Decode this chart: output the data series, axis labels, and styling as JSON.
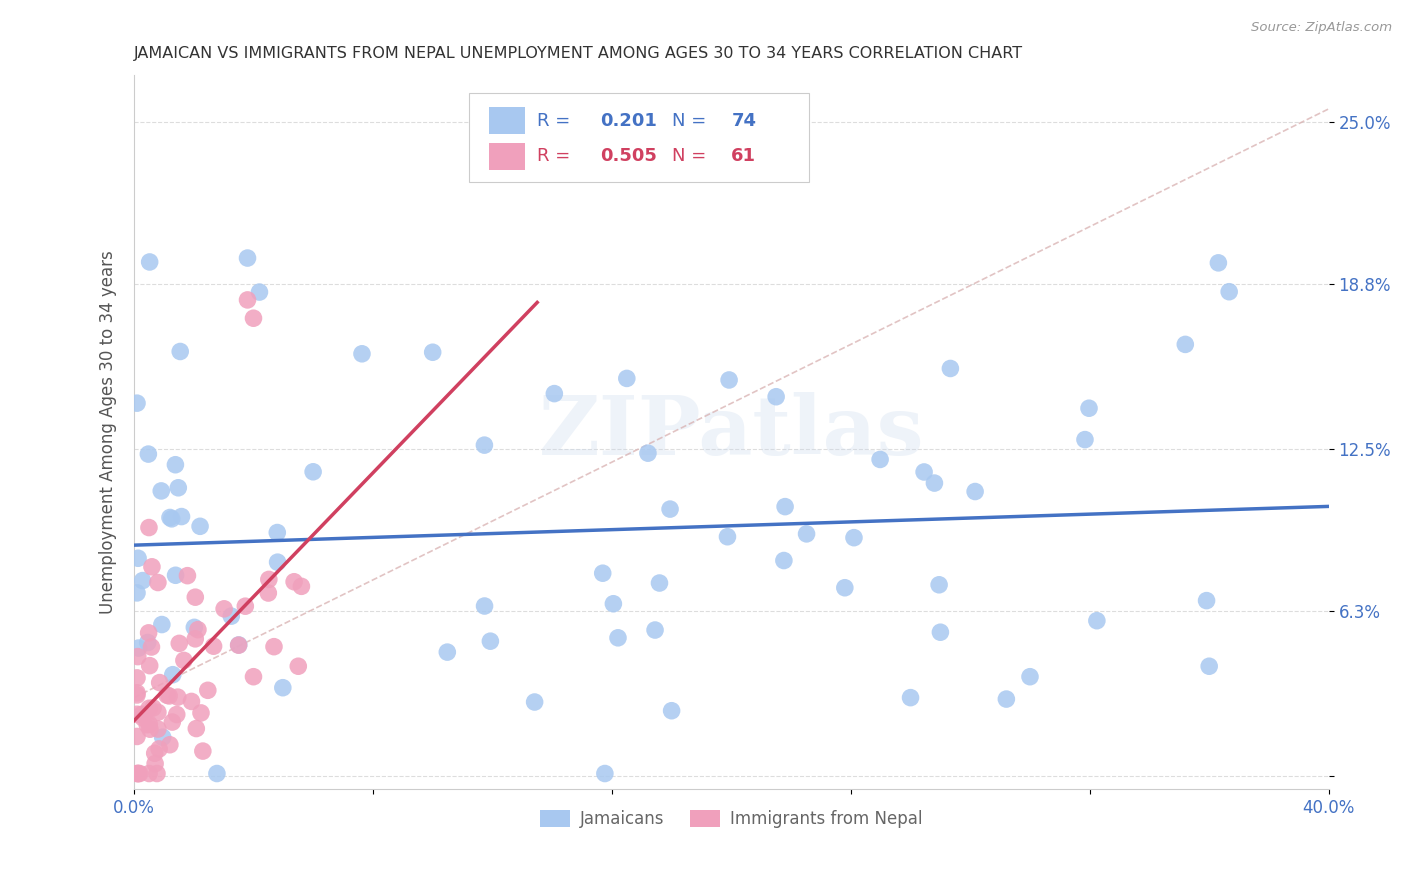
{
  "title": "JAMAICAN VS IMMIGRANTS FROM NEPAL UNEMPLOYMENT AMONG AGES 30 TO 34 YEARS CORRELATION CHART",
  "source": "Source: ZipAtlas.com",
  "ylabel": "Unemployment Among Ages 30 to 34 years",
  "xlim": [
    0.0,
    0.4
  ],
  "ylim": [
    -0.005,
    0.268
  ],
  "yticks": [
    0.0,
    0.063,
    0.125,
    0.188,
    0.25
  ],
  "ytick_labels": [
    "",
    "6.3%",
    "12.5%",
    "18.8%",
    "25.0%"
  ],
  "xtick_positions": [
    0.0,
    0.08,
    0.16,
    0.24,
    0.32,
    0.4
  ],
  "xtick_labels": [
    "0.0%",
    "",
    "",
    "",
    "",
    "40.0%"
  ],
  "r_jamaican": 0.201,
  "n_jamaican": 74,
  "r_nepal": 0.505,
  "n_nepal": 61,
  "color_jamaican": "#A8C8F0",
  "color_nepal": "#F0A0BC",
  "color_line_jamaican": "#4472C4",
  "color_line_nepal": "#D04060",
  "color_diagonal": "#D8B0B0",
  "background_color": "#FFFFFF"
}
